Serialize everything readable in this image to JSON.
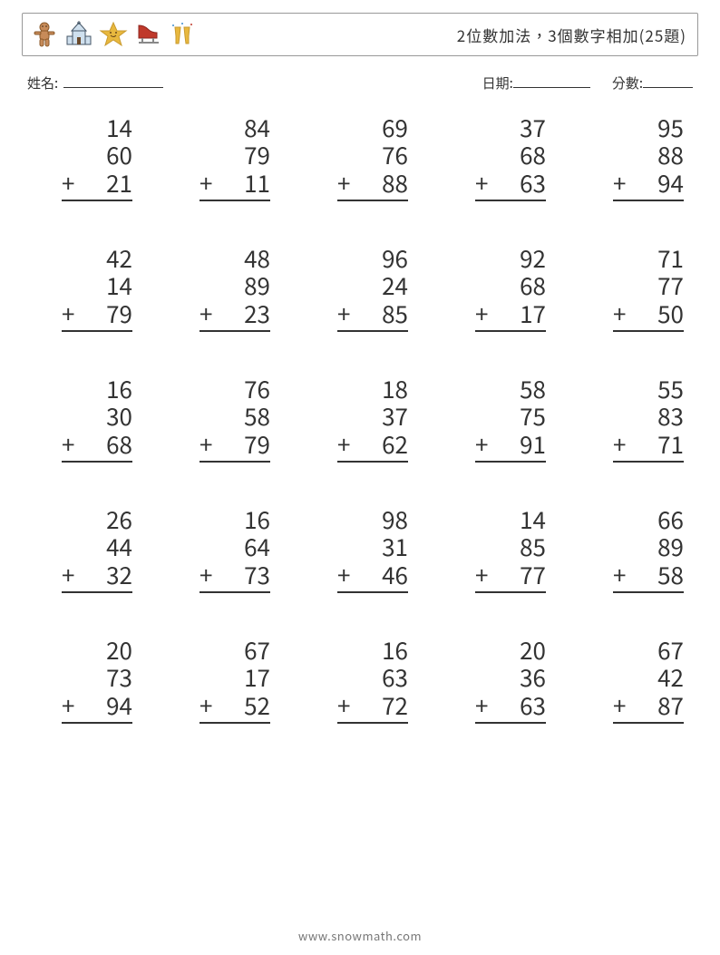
{
  "header": {
    "title": "2位數加法，3個數字相加(25題)",
    "icons": [
      "gingerbread",
      "church",
      "star",
      "skate",
      "cheers"
    ]
  },
  "meta": {
    "name_label": "姓名:",
    "date_label": "日期:",
    "score_label": "分數:"
  },
  "style": {
    "operator": "+",
    "number_fontsize": 26,
    "text_color": "#333333",
    "border_color": "#333333"
  },
  "problems": [
    {
      "a": 14,
      "b": 60,
      "c": 21
    },
    {
      "a": 84,
      "b": 79,
      "c": 11
    },
    {
      "a": 69,
      "b": 76,
      "c": 88
    },
    {
      "a": 37,
      "b": 68,
      "c": 63
    },
    {
      "a": 95,
      "b": 88,
      "c": 94
    },
    {
      "a": 42,
      "b": 14,
      "c": 79
    },
    {
      "a": 48,
      "b": 89,
      "c": 23
    },
    {
      "a": 96,
      "b": 24,
      "c": 85
    },
    {
      "a": 92,
      "b": 68,
      "c": 17
    },
    {
      "a": 71,
      "b": 77,
      "c": 50
    },
    {
      "a": 16,
      "b": 30,
      "c": 68
    },
    {
      "a": 76,
      "b": 58,
      "c": 79
    },
    {
      "a": 18,
      "b": 37,
      "c": 62
    },
    {
      "a": 58,
      "b": 75,
      "c": 91
    },
    {
      "a": 55,
      "b": 83,
      "c": 71
    },
    {
      "a": 26,
      "b": 44,
      "c": 32
    },
    {
      "a": 16,
      "b": 64,
      "c": 73
    },
    {
      "a": 98,
      "b": 31,
      "c": 46
    },
    {
      "a": 14,
      "b": 85,
      "c": 77
    },
    {
      "a": 66,
      "b": 89,
      "c": 58
    },
    {
      "a": 20,
      "b": 73,
      "c": 94
    },
    {
      "a": 67,
      "b": 17,
      "c": 52
    },
    {
      "a": 16,
      "b": 63,
      "c": 72
    },
    {
      "a": 20,
      "b": 36,
      "c": 63
    },
    {
      "a": 67,
      "b": 42,
      "c": 87
    }
  ],
  "footer": {
    "text": "www.snowmath.com"
  },
  "icon_colors": {
    "gingerbread": "#C78B59",
    "church": "#7AA6C9",
    "star": "#E8B83E",
    "skate_blade": "#B0B0B0",
    "skate_boot": "#C0392B",
    "glass": "#E8B83E",
    "confetti": "#3E8ED0"
  }
}
